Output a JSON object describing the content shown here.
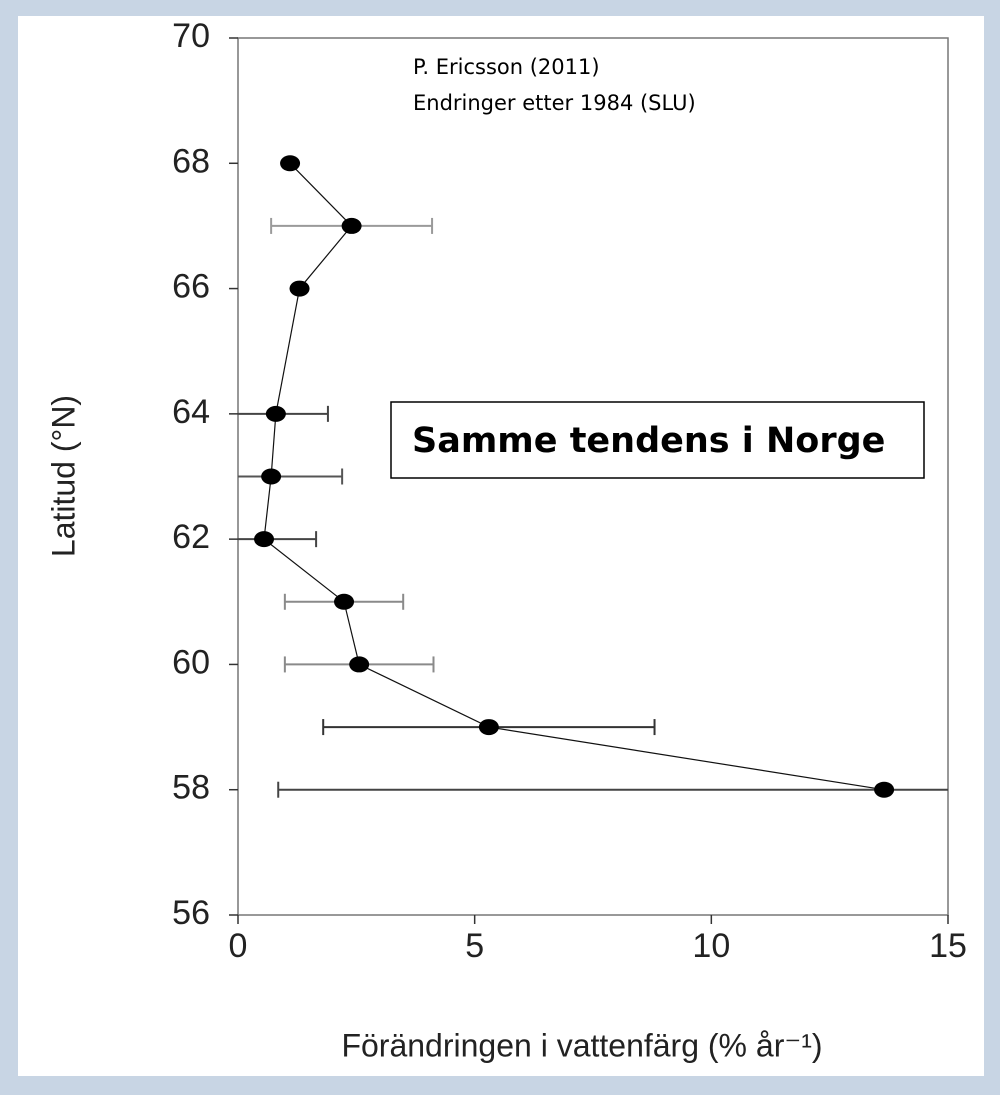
{
  "chart_data": {
    "type": "scatter",
    "x": [
      1.1,
      2.4,
      1.3,
      0.8,
      0.7,
      0.55,
      2.24,
      2.56,
      5.3,
      13.65
    ],
    "y": [
      68,
      67,
      66,
      64,
      63,
      62,
      61,
      60,
      59,
      58
    ],
    "xerr": [
      null,
      1.7,
      null,
      1.1,
      1.5,
      1.1,
      1.25,
      1.57,
      3.5,
      12.8
    ],
    "xerr_colors": [
      null,
      "#9a9a9a",
      null,
      "#444444",
      "#555555",
      "#444444",
      "#8a8a8a",
      "#8a8a8a",
      "#333333",
      "#444444"
    ],
    "color": "#000000",
    "xlim": [
      0,
      15
    ],
    "xticks": [
      0,
      5,
      10,
      15
    ],
    "ylim": [
      56,
      70
    ],
    "yticks": [
      56,
      58,
      60,
      62,
      64,
      66,
      68,
      70
    ],
    "xlabel": "Förändringen i vattenfärg (% år⁻¹)",
    "ylabel": "Latitud (°N)",
    "annotations": [
      "P. Ericsson (2011)",
      "Endringer etter 1984 (SLU)"
    ],
    "box_text": "Samme tendens i Norge"
  }
}
